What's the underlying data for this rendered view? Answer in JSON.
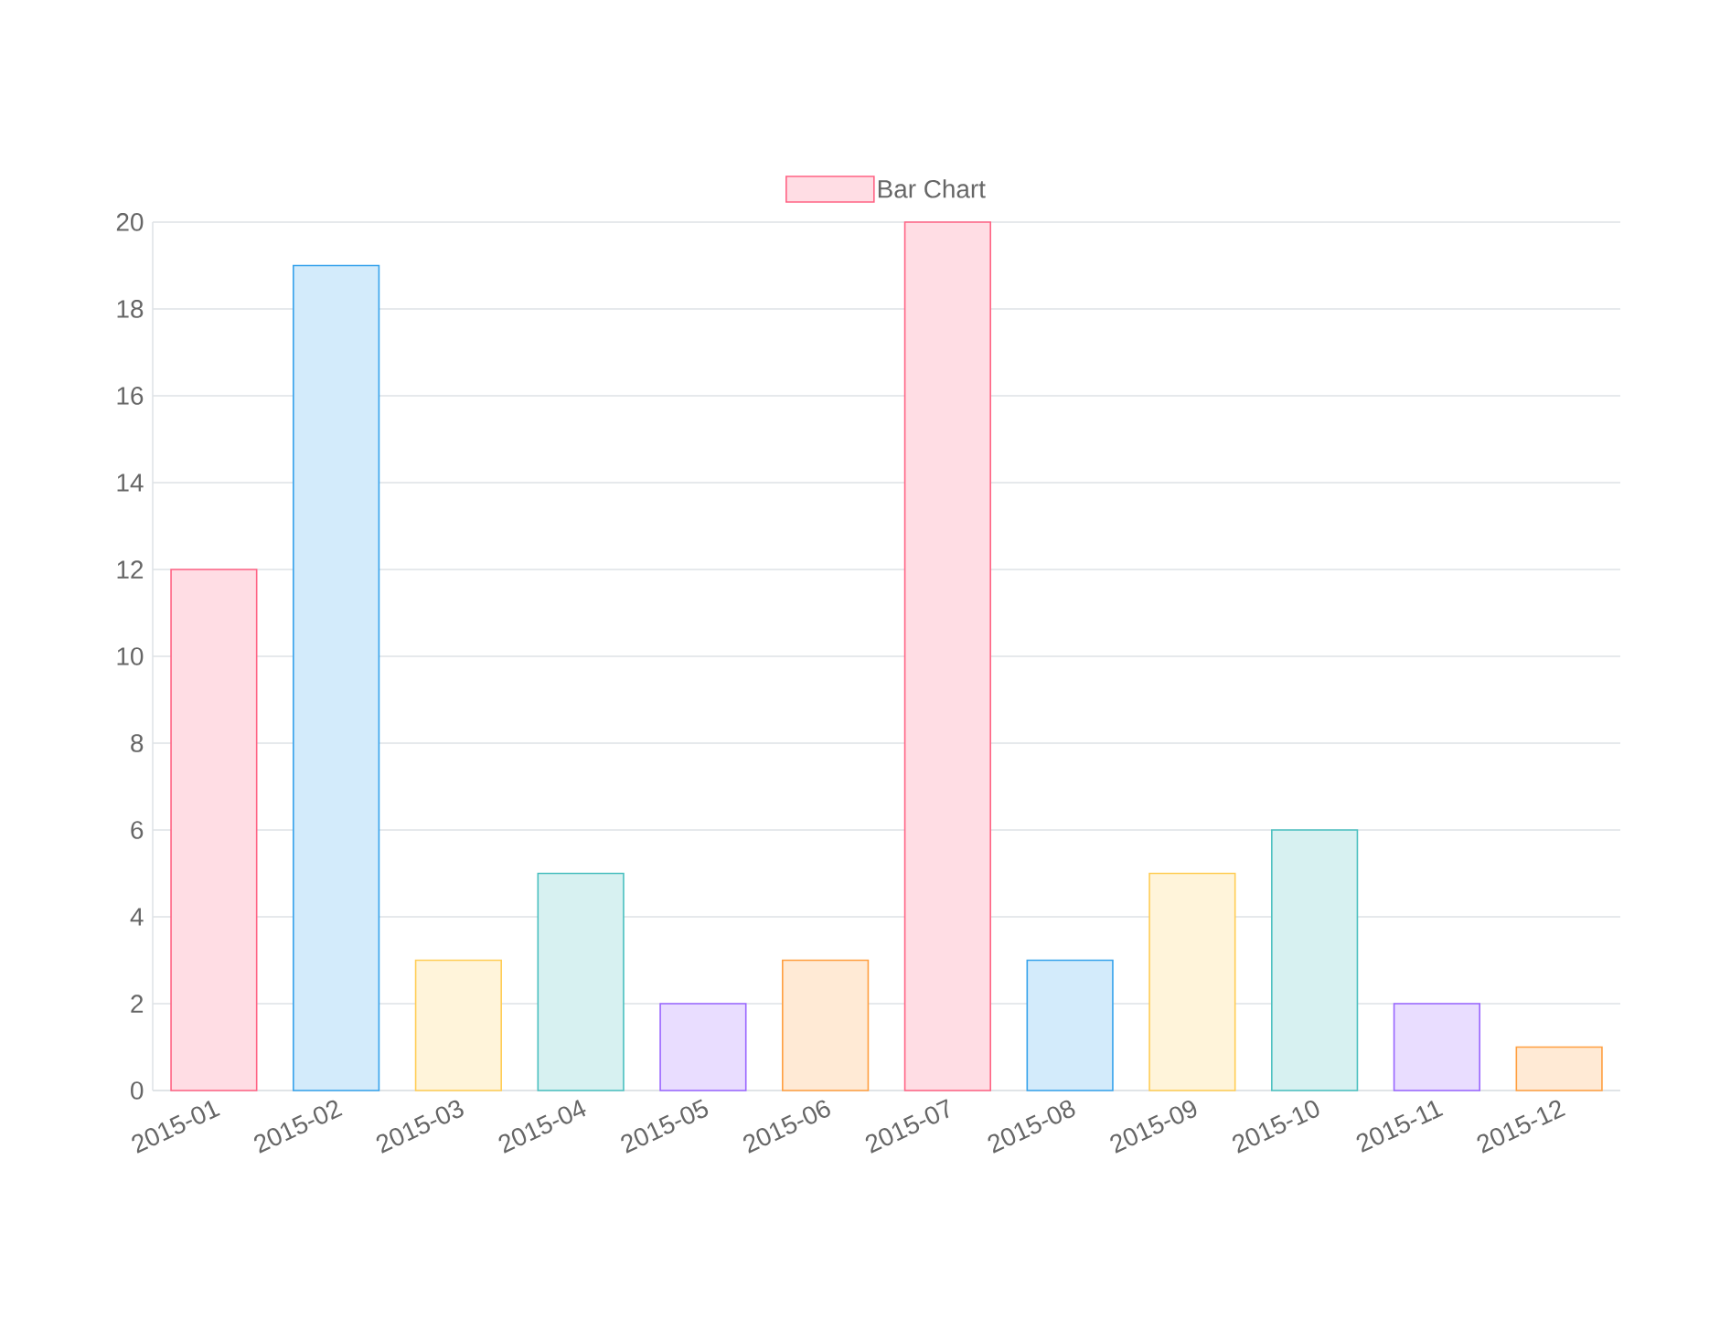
{
  "chart_data": {
    "type": "bar",
    "categories": [
      "2015-01",
      "2015-02",
      "2015-03",
      "2015-04",
      "2015-05",
      "2015-06",
      "2015-07",
      "2015-08",
      "2015-09",
      "2015-10",
      "2015-11",
      "2015-12"
    ],
    "series": [
      {
        "name": "Bar Chart",
        "color": "#ff6384",
        "colors": [
          "#ff6384",
          "#36a2eb",
          "#ffcd56",
          "#4bc0c0",
          "#9966ff",
          "#ff9f40",
          "#ff6384",
          "#36a2eb",
          "#ffcd56",
          "#4bc0c0",
          "#9966ff",
          "#ff9f40"
        ],
        "values": [
          12,
          19,
          3,
          5,
          2,
          3,
          20,
          3,
          5,
          6,
          2,
          1
        ]
      }
    ],
    "ylim": [
      0,
      20
    ],
    "yticks": [
      0,
      2,
      4,
      6,
      8,
      10,
      12,
      14,
      16,
      18,
      20
    ],
    "grid": "y",
    "legend": "top"
  }
}
